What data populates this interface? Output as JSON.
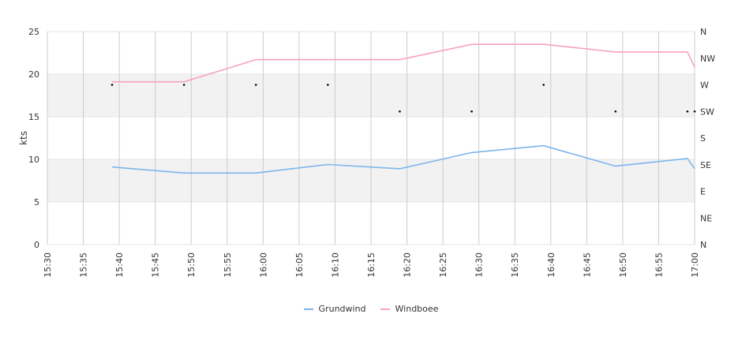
{
  "chart_data": {
    "type": "line",
    "ylabel": "kts",
    "ylim": [
      0,
      25
    ],
    "yticks": [
      0,
      5,
      10,
      15,
      20,
      25
    ],
    "y2ticks": [
      "N",
      "NE",
      "E",
      "SE",
      "S",
      "SW",
      "W",
      "NW",
      "N"
    ],
    "xticks": [
      "15:30",
      "15:35",
      "15:40",
      "15:45",
      "15:50",
      "15:55",
      "16:00",
      "16:05",
      "16:10",
      "16:15",
      "16:20",
      "16:25",
      "16:30",
      "16:35",
      "16:40",
      "16:45",
      "16:50",
      "16:55",
      "17:00"
    ],
    "xlim": [
      "15:30",
      "17:00"
    ],
    "grid": true,
    "legend_position": "bottom-center",
    "series": [
      {
        "name": "Grundwind",
        "color": "#7cb5ec",
        "x": [
          "15:39",
          "15:49",
          "15:59",
          "16:09",
          "16:19",
          "16:29",
          "16:39",
          "16:49",
          "16:59",
          "17:00"
        ],
        "values": [
          9.1,
          8.4,
          8.4,
          9.4,
          8.9,
          10.8,
          11.6,
          9.2,
          10.1,
          8.9
        ]
      },
      {
        "name": "Windboee",
        "color": "#f7a1c4",
        "x": [
          "15:39",
          "15:49",
          "15:59",
          "16:09",
          "16:19",
          "16:29",
          "16:39",
          "16:49",
          "16:59",
          "17:00"
        ],
        "values": [
          19.1,
          19.1,
          21.7,
          21.7,
          21.7,
          23.5,
          23.5,
          22.6,
          22.6,
          20.8
        ]
      }
    ],
    "direction": {
      "x": [
        "15:39",
        "15:49",
        "15:59",
        "16:09",
        "16:19",
        "16:29",
        "16:39",
        "16:49",
        "16:59",
        "17:00"
      ],
      "values": [
        "W",
        "W",
        "W",
        "W",
        "SW",
        "SW",
        "W",
        "SW",
        "SW",
        "SW"
      ]
    }
  },
  "colors": {
    "band": "#f2f2f2",
    "grid": "#cccccc",
    "marker": "#000000"
  }
}
